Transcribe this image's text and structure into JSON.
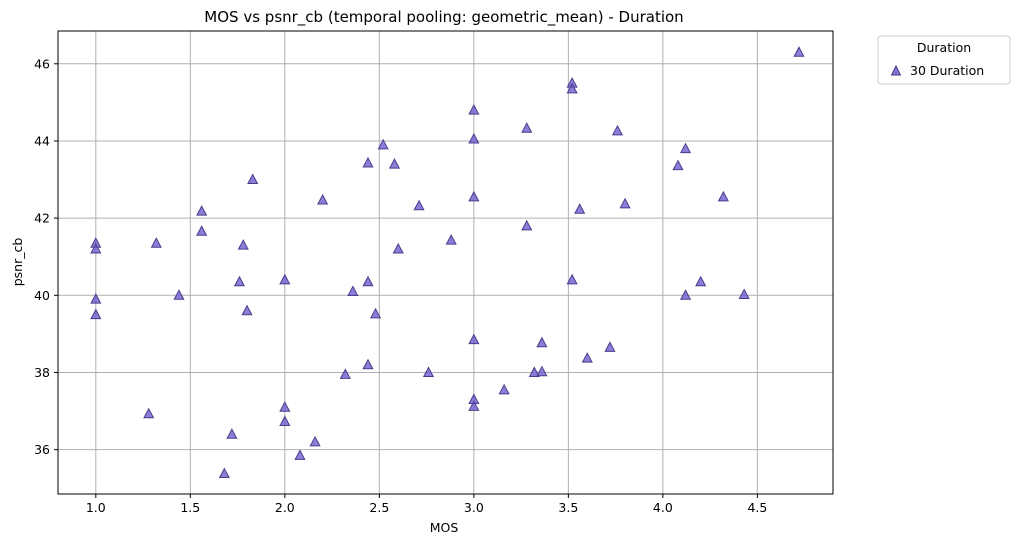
{
  "chart_data": {
    "type": "scatter",
    "title": "MOS vs psnr_cb (temporal pooling: geometric_mean) - Duration",
    "xlabel": "MOS",
    "ylabel": "psnr_cb",
    "xlim": [
      0.8,
      4.9
    ],
    "ylim": [
      34.85,
      46.85
    ],
    "x_ticks": [
      "1.0",
      "1.5",
      "2.0",
      "2.5",
      "3.0",
      "3.5",
      "4.0",
      "4.5"
    ],
    "x_tick_values": [
      1.0,
      1.5,
      2.0,
      2.5,
      3.0,
      3.5,
      4.0,
      4.5
    ],
    "y_ticks": [
      "36",
      "38",
      "40",
      "42",
      "44",
      "46"
    ],
    "y_tick_values": [
      36,
      38,
      40,
      42,
      44,
      46
    ],
    "grid": true,
    "legend": {
      "title": "Duration",
      "placement": "outside-top-right"
    },
    "series": [
      {
        "name": "30 Duration",
        "marker": "triangle",
        "color": "#6a5acd",
        "points": [
          [
            1.0,
            41.35
          ],
          [
            1.0,
            41.2
          ],
          [
            1.0,
            39.9
          ],
          [
            1.0,
            39.5
          ],
          [
            1.28,
            36.93
          ],
          [
            1.32,
            41.35
          ],
          [
            1.44,
            40.0
          ],
          [
            1.56,
            42.18
          ],
          [
            1.56,
            41.66
          ],
          [
            1.68,
            35.38
          ],
          [
            1.72,
            36.4
          ],
          [
            1.76,
            40.35
          ],
          [
            1.78,
            41.3
          ],
          [
            1.8,
            39.6
          ],
          [
            1.83,
            43.0
          ],
          [
            2.0,
            40.4
          ],
          [
            2.0,
            37.1
          ],
          [
            2.0,
            36.73
          ],
          [
            2.08,
            35.85
          ],
          [
            2.16,
            36.2
          ],
          [
            2.2,
            42.47
          ],
          [
            2.32,
            37.95
          ],
          [
            2.36,
            40.1
          ],
          [
            2.44,
            43.43
          ],
          [
            2.44,
            40.35
          ],
          [
            2.44,
            38.2
          ],
          [
            2.48,
            39.52
          ],
          [
            2.52,
            43.9
          ],
          [
            2.58,
            43.4
          ],
          [
            2.6,
            41.2
          ],
          [
            2.71,
            42.32
          ],
          [
            2.76,
            38.0
          ],
          [
            2.88,
            41.43
          ],
          [
            3.0,
            44.8
          ],
          [
            3.0,
            44.05
          ],
          [
            3.0,
            42.55
          ],
          [
            3.0,
            38.85
          ],
          [
            3.0,
            37.3
          ],
          [
            3.0,
            37.12
          ],
          [
            3.16,
            37.55
          ],
          [
            3.28,
            44.33
          ],
          [
            3.28,
            41.8
          ],
          [
            3.32,
            38.0
          ],
          [
            3.36,
            38.02
          ],
          [
            3.36,
            38.77
          ],
          [
            3.52,
            45.5
          ],
          [
            3.52,
            45.35
          ],
          [
            3.52,
            40.4
          ],
          [
            3.56,
            42.23
          ],
          [
            3.6,
            38.37
          ],
          [
            3.72,
            38.65
          ],
          [
            3.76,
            44.26
          ],
          [
            3.8,
            42.37
          ],
          [
            4.08,
            43.36
          ],
          [
            4.12,
            43.8
          ],
          [
            4.12,
            40.0
          ],
          [
            4.2,
            40.35
          ],
          [
            4.32,
            42.55
          ],
          [
            4.43,
            40.02
          ],
          [
            4.72,
            46.3
          ]
        ]
      }
    ]
  }
}
